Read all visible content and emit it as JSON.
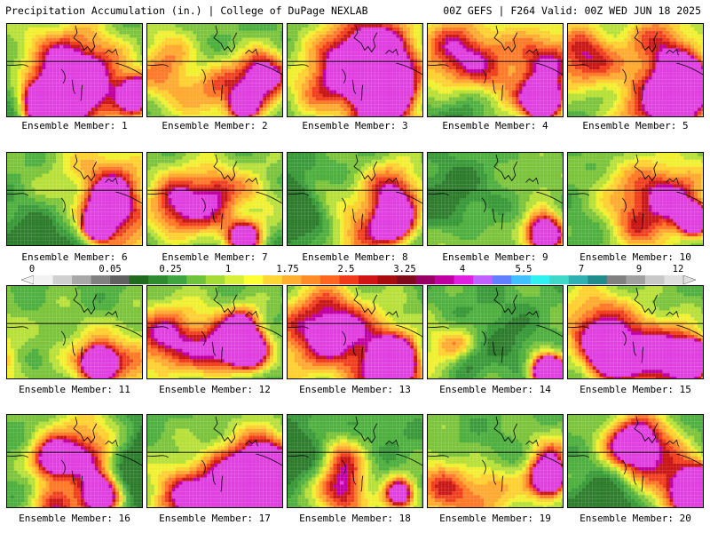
{
  "header": {
    "left_title": "Precipitation Accumulation (in.) | College of DuPage NEXLAB",
    "right_title": "00Z GEFS | F264 Valid: 00Z WED JUN 18 2025"
  },
  "colorbar": {
    "tick_labels": [
      "0",
      "0.05",
      "0.25",
      "1",
      "1.75",
      "2.5",
      "3.25",
      "4",
      "5.5",
      "7",
      "9",
      "12"
    ],
    "colors": [
      "#f2f2f2",
      "#d0d0d0",
      "#a8a8a8",
      "#808080",
      "#606060",
      "#1e6b1e",
      "#2e8b2e",
      "#3fa53f",
      "#6dc43a",
      "#a6dc36",
      "#d8ef3a",
      "#ffff33",
      "#ffd633",
      "#ffb030",
      "#ff8c26",
      "#ff6620",
      "#f03a1a",
      "#d11414",
      "#a80c0c",
      "#800a1a",
      "#990066",
      "#c000a0",
      "#e020e0",
      "#c060ff",
      "#6080ff",
      "#40c0ff",
      "#30f0f0",
      "#40d8c8",
      "#30b0b0",
      "#208c8c",
      "#808080",
      "#a0a0a0",
      "#c8c8c8",
      "#e0e0e0"
    ]
  },
  "panels": [
    {
      "label": "Ensemble Member: 1"
    },
    {
      "label": "Ensemble Member: 2"
    },
    {
      "label": "Ensemble Member: 3"
    },
    {
      "label": "Ensemble Member: 4"
    },
    {
      "label": "Ensemble Member: 5"
    },
    {
      "label": "Ensemble Member: 6"
    },
    {
      "label": "Ensemble Member: 7"
    },
    {
      "label": "Ensemble Member: 8"
    },
    {
      "label": "Ensemble Member: 9"
    },
    {
      "label": "Ensemble Member: 10"
    },
    {
      "label": "Ensemble Member: 11"
    },
    {
      "label": "Ensemble Member: 12"
    },
    {
      "label": "Ensemble Member: 13"
    },
    {
      "label": "Ensemble Member: 14"
    },
    {
      "label": "Ensemble Member: 15"
    },
    {
      "label": "Ensemble Member: 16"
    },
    {
      "label": "Ensemble Member: 17"
    },
    {
      "label": "Ensemble Member: 18"
    },
    {
      "label": "Ensemble Member: 19"
    },
    {
      "label": "Ensemble Member: 20"
    }
  ]
}
